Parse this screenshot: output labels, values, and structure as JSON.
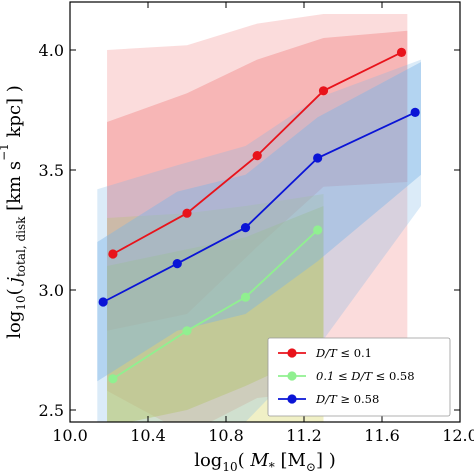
{
  "chart_data": {
    "type": "line",
    "xlabel": "log$_{10}$( $M_*$ [M$_\\odot$] )",
    "xlabel_parts": {
      "main": "log",
      "sub": "10",
      "open": "( ",
      "var": "M",
      "varsub": "*",
      "unit": " [M",
      "unitsub": "⊙",
      "close": "] )"
    },
    "ylabel_parts": {
      "main": "log",
      "sub": "10",
      "open": "( ",
      "var": "j",
      "varsub": "total, disk",
      "unit": " [km s",
      "sup": "−1",
      "close": " kpc] )"
    },
    "xlim": [
      10.0,
      12.0
    ],
    "ylim": [
      2.45,
      4.2
    ],
    "x_ticks": [
      10.0,
      10.4,
      10.8,
      11.2,
      11.6,
      12.0
    ],
    "x_tick_labels": [
      "10.0",
      "10.4",
      "10.8",
      "11.2",
      "11.6",
      "12.0"
    ],
    "y_ticks": [
      2.5,
      3.0,
      3.5,
      4.0
    ],
    "y_tick_labels": [
      "2.5",
      "3.0",
      "3.5",
      "4.0"
    ],
    "grid": false,
    "legend_position": "lower-right",
    "series": [
      {
        "name": "D/T ≤ 0.1",
        "legend_label": {
          "a": "D/T",
          "b": "≤ 0.1"
        },
        "color": "#e8131b",
        "x": [
          10.22,
          10.6,
          10.96,
          11.3,
          11.7
        ],
        "y": [
          3.15,
          3.32,
          3.56,
          3.83,
          3.99
        ],
        "band_inner_upper": [
          3.7,
          3.82,
          3.96,
          4.05,
          4.08
        ],
        "band_inner_lower": [
          2.83,
          2.9,
          3.18,
          3.43,
          3.45
        ],
        "band_outer_upper": [
          4.0,
          4.02,
          4.11,
          4.15,
          4.15
        ],
        "band_outer_lower": [
          2.58,
          2.4,
          2.55,
          2.58,
          2.58
        ],
        "band_color": "#f08080"
      },
      {
        "name": "0.1 ≤ D/T ≤ 0.58",
        "legend_label": {
          "a": "0.1 ≤ D/T",
          "b": "≤ 0.58"
        },
        "color": "#90f090",
        "x": [
          10.22,
          10.6,
          10.9,
          11.27
        ],
        "y": [
          2.63,
          2.83,
          2.97,
          3.25
        ],
        "band_inner_upper": [
          3.1,
          3.17,
          3.22,
          3.35
        ],
        "band_inner_lower": [
          2.43,
          2.5,
          2.6,
          2.75
        ],
        "band_outer_upper": [
          3.3,
          3.32,
          3.35,
          3.4
        ],
        "band_outer_lower": [
          2.38,
          2.38,
          2.38,
          2.4
        ],
        "band_color": "#c8c832"
      },
      {
        "name": "D/T ≥ 0.58",
        "legend_label": {
          "a": "D/T",
          "b": "≥ 0.58"
        },
        "color": "#0a14d6",
        "x": [
          10.17,
          10.55,
          10.9,
          11.27,
          11.77
        ],
        "y": [
          2.95,
          3.11,
          3.26,
          3.55,
          3.74
        ],
        "band_inner_upper": [
          3.2,
          3.41,
          3.48,
          3.72,
          3.95
        ],
        "band_inner_lower": [
          2.62,
          2.83,
          2.9,
          3.12,
          3.48
        ],
        "band_outer_upper": [
          3.42,
          3.52,
          3.6,
          3.8,
          3.96
        ],
        "band_outer_lower": [
          2.38,
          2.38,
          2.45,
          2.76,
          3.35
        ],
        "band_color": "#7cb6e6"
      }
    ]
  }
}
